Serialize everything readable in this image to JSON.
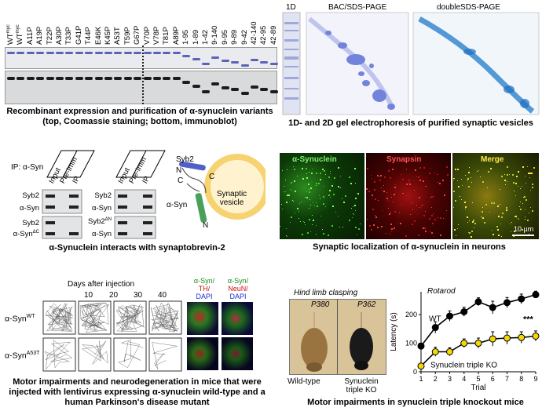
{
  "panel_a": {
    "lanes_top": [
      "WT",
      "WT",
      "A11P",
      "A19P",
      "T22P",
      "A30P",
      "T33P",
      "G41P",
      "T44P",
      "E46K",
      "K45P",
      "A53T",
      "T59P",
      "G67P",
      "V70P",
      "V78P",
      "T81P",
      "A89P"
    ],
    "lanes_sup": {
      "0": "myc",
      "1": "myc"
    },
    "lanes_deletions": [
      "1-95",
      "1-89",
      "1-42",
      "9-140",
      "9-95",
      "9-89",
      "9-42",
      "42-140",
      "42-95",
      "42-89"
    ],
    "caption": "Recombinant expression and purification of α-synuclein variants (top, Coomassie staining; bottom, immunoblot)"
  },
  "panel_b": {
    "label_1d": "1D",
    "label_bac": "BAC/SDS-PAGE",
    "label_double": "doubleSDS-PAGE",
    "caption": "1D- and 2D gel electrophoresis of purified synaptic vesicles"
  },
  "panel_c": {
    "ip_label": "IP: α-Syn",
    "cols": [
      "Input",
      "Pre-Imm",
      "IP"
    ],
    "left_rows": [
      "Syb2",
      "α-Syn",
      "Syb2",
      "α-Syn"
    ],
    "left_sup": "ΔC",
    "right_rows": [
      "Syb2",
      "α-Syn",
      "Syb2",
      "α-Syn"
    ],
    "right_sup": "ΔN",
    "diagram": {
      "syb2": "Syb2",
      "c_top": "C",
      "n_top": "N",
      "c_left": "C",
      "vesicle": "Synaptic vesicle",
      "asyn": "α-Syn",
      "n_bottom": "N"
    },
    "caption": "α-Synuclein interacts with synaptobrevin-2"
  },
  "panel_d": {
    "labels": [
      "α-Synuclein",
      "Synapsin",
      "Merge"
    ],
    "scale": "10 µm",
    "caption": "Synaptic localization of α-synuclein in neurons"
  },
  "panel_e": {
    "title": "Days after injection",
    "days": [
      "10",
      "20",
      "30",
      "40"
    ],
    "row_wt": "α-Syn",
    "row_wt_sup": "WT",
    "row_mut": "α-Syn",
    "row_mut_sup": "A53T",
    "stain1": [
      "α-Syn/",
      "TH/",
      "DAPI"
    ],
    "stain2": [
      "α-Syn/",
      "NeuN/",
      "DAPI"
    ],
    "caption": "Motor impairments and neurodegeneration in mice that were injected with lentivirus expressing α-synuclein wild-type and a human Parkinson's disease mutant"
  },
  "panel_f": {
    "clasp_title": "Hind limb clasping",
    "p1": "P380",
    "p2": "P362",
    "mouse1": "Wild-type",
    "mouse2": "Synuclein triple KO",
    "caption": "Motor impairments in synuclein triple knockout mice"
  },
  "chart_data": {
    "type": "line",
    "title": "Rotarod",
    "xlabel": "Trial",
    "ylabel": "Latency (s)",
    "x": [
      1,
      2,
      3,
      4,
      5,
      6,
      7,
      8,
      9
    ],
    "ylim": [
      0,
      280
    ],
    "yticks": [
      0,
      100,
      200
    ],
    "significance": "***",
    "series": [
      {
        "name": "WT",
        "color": "#000000",
        "values": [
          90,
          155,
          195,
          210,
          245,
          225,
          242,
          255,
          270
        ],
        "err": [
          8,
          20,
          18,
          16,
          14,
          22,
          18,
          17,
          12
        ]
      },
      {
        "name": "Synuclein triple KO",
        "color": "#f5d800",
        "values": [
          20,
          70,
          70,
          100,
          100,
          115,
          118,
          120,
          125
        ],
        "err": [
          6,
          16,
          14,
          15,
          18,
          25,
          22,
          20,
          18
        ]
      }
    ]
  }
}
